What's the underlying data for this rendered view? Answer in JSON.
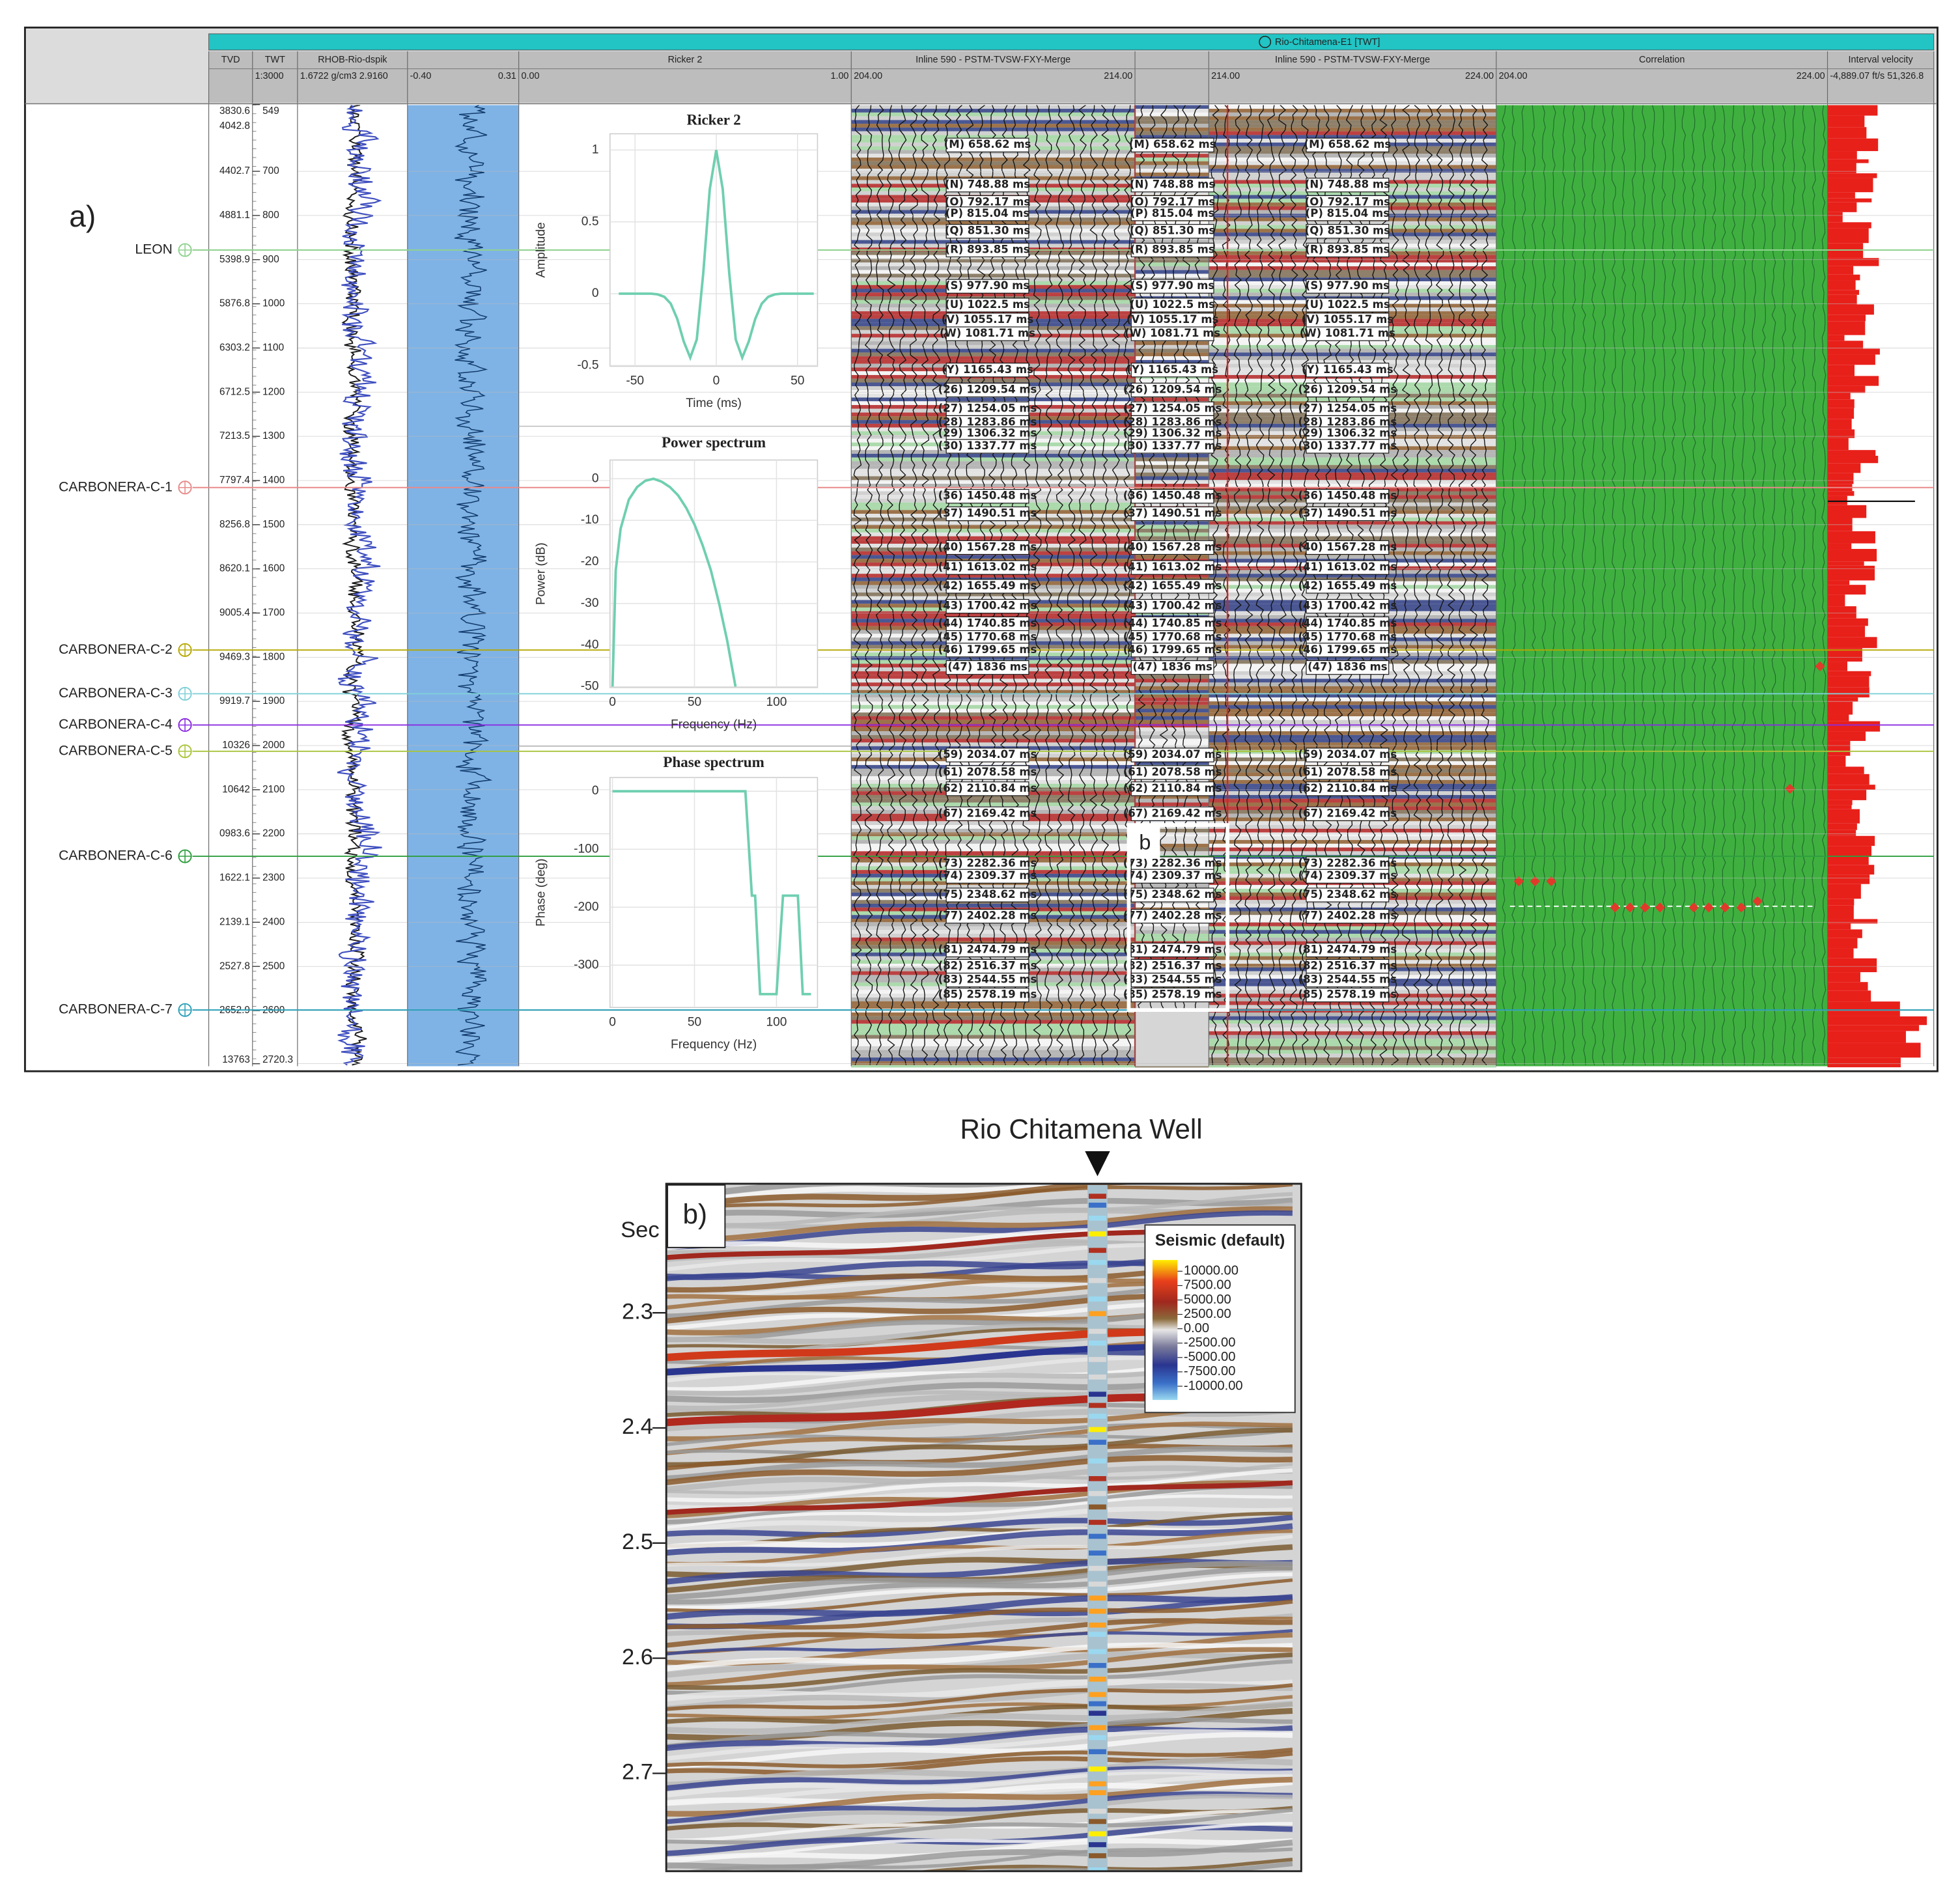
{
  "panel_a": {
    "label": "a)",
    "well_title": "Rio-Chitamena-E1 [TWT]",
    "inset_label": "b",
    "headers": [
      {
        "name": "TVD"
      },
      {
        "name": "TWT",
        "range": "1:3000"
      },
      {
        "name": "RHOB-Rio-dspik",
        "range": "1.6722 g/cm3 2.9160"
      },
      {
        "range_min": "-0.40",
        "range_max": "0.31"
      },
      {
        "name": "Ricker 2",
        "range_min": "0.00",
        "range_max": "1.00"
      },
      {
        "name": "Inline 590 - PSTM-TVSW-FXY-Merge",
        "range_min": "204.00",
        "range_max": "214.00"
      },
      {
        "name": "Inline 590 - PSTM-TVSW-FXY-Merge",
        "range_min": "214.00",
        "range_max": "224.00"
      },
      {
        "name": "Correlation",
        "range_min": "204.00",
        "range_max": "224.00"
      },
      {
        "name": "Interval velocity",
        "range": "-4,889.07 ft/s 51,326.8"
      }
    ],
    "twt_lim": [
      550,
      2726
    ],
    "twt_ticks": [
      549,
      700,
      800,
      900,
      1000,
      1100,
      1200,
      1300,
      1400,
      1500,
      1600,
      1700,
      1800,
      1900,
      2000,
      2100,
      2200,
      2300,
      2400,
      2500,
      2600,
      2720.3
    ],
    "tvd_labels": [
      "3830.6",
      "4042.8",
      "4402.7",
      "4881.1",
      "5398.9",
      "5876.8",
      "6303.2",
      "6712.5",
      "7213.5",
      "7797.4",
      "8256.8",
      "8620.1",
      "9005.4",
      "9469.3",
      "9919.7",
      "10326",
      "10642",
      "0983.6",
      "1622.1",
      "2139.1",
      "2527.8",
      "2652.9",
      "13763"
    ],
    "well_tops": [
      {
        "name": "LEON",
        "color": "#8fd18f"
      },
      {
        "name": "CARBONERA-C-1",
        "color": "#e88a8a"
      },
      {
        "name": "CARBONERA-C-2",
        "color": "#b5a800"
      },
      {
        "name": "CARBONERA-C-3",
        "color": "#7fd0d8"
      },
      {
        "name": "CARBONERA-C-4",
        "color": "#8a2be2"
      },
      {
        "name": "CARBONERA-C-5",
        "color": "#a8c43a"
      },
      {
        "name": "CARBONERA-C-6",
        "color": "#2e9e3e"
      },
      {
        "name": "CARBONERA-C-7",
        "color": "#2aa0b8"
      }
    ],
    "tie_labels": [
      "(M) 658.62 ms",
      "(N) 748.88 ms",
      "(O) 792.17 ms",
      "(P) 815.04 ms",
      "(Q) 851.30 ms",
      "(R) 893.85 ms",
      "(S) 977.90 ms",
      "(U) 1022.5 ms",
      "(V) 1055.17 ms",
      "(W) 1081.71 ms",
      "(Y) 1165.43 ms",
      "(26) 1209.54 ms",
      "(27) 1254.05 ms",
      "(28) 1283.86 ms",
      "(29) 1306.32 ms",
      "(30) 1337.77 ms",
      "(36) 1450.48 ms",
      "(37) 1490.51 ms",
      "(40) 1567.28 ms",
      "(41) 1613.02 ms",
      "(42) 1655.49 ms",
      "(43) 1700.42 ms",
      "(44) 1740.85 ms",
      "(45) 1770.68 ms",
      "(46) 1799.65 ms",
      "(47) 1836 ms",
      "(59) 2034.07 ms",
      "(61) 2078.58 ms",
      "(62) 2110.84 ms",
      "(67) 2169.42 ms",
      "(73) 2282.36 ms",
      "(74) 2309.37 ms",
      "(75) 2348.62 ms",
      "(77) 2402.28 ms",
      "(81) 2474.79 ms",
      "(82) 2516.37 ms",
      "(83) 2544.55 ms",
      "(85) 2578.19 ms"
    ]
  },
  "chart_data": [
    {
      "type": "line",
      "title": "Ricker 2",
      "x_label": "Time (ms)",
      "y_label": "Amplitude",
      "color": "#6fcfb0",
      "x": [
        -60,
        -56,
        -52,
        -48,
        -44,
        -40,
        -36,
        -32,
        -28,
        -24,
        -20,
        -16,
        -12,
        -8,
        -4,
        0,
        4,
        8,
        12,
        16,
        20,
        24,
        28,
        32,
        36,
        40,
        44,
        48,
        52,
        56,
        60
      ],
      "values": [
        0,
        0,
        0,
        0,
        0,
        0,
        -0.005,
        -0.021,
        -0.069,
        -0.175,
        -0.333,
        -0.445,
        -0.319,
        0.142,
        0.727,
        1,
        0.727,
        0.142,
        -0.319,
        -0.445,
        -0.333,
        -0.175,
        -0.069,
        -0.021,
        -0.005,
        0,
        0,
        0,
        0,
        0,
        0
      ],
      "xlim": [
        -65.4,
        62.3
      ],
      "xticks": [
        -50,
        0,
        50
      ],
      "ylim": [
        -0.505,
        1.113
      ],
      "yticks": [
        1,
        0.5,
        0,
        -0.5
      ],
      "grid": true
    },
    {
      "type": "line",
      "title": "Power spectrum",
      "x_label": "Frequency (Hz)",
      "y_label": "Power (dB)",
      "color": "#6fcfb0",
      "x": [
        0,
        2,
        5,
        10,
        15,
        20,
        25,
        30,
        35,
        40,
        45,
        50,
        55,
        60,
        65,
        70,
        75
      ],
      "values": [
        -50,
        -22,
        -12,
        -5,
        -2,
        -0.5,
        0,
        -0.7,
        -2,
        -4,
        -7,
        -11,
        -16,
        -22,
        -30,
        -39,
        -50
      ],
      "xlim": [
        -1.5,
        125
      ],
      "xticks": [
        0,
        50,
        100
      ],
      "ylim": [
        -50.2,
        4.5
      ],
      "yticks": [
        0,
        -10,
        -20,
        -30,
        -40,
        -50
      ],
      "grid": true
    },
    {
      "type": "line",
      "title": "Phase spectrum",
      "x_label": "Frequency (Hz)",
      "y_label": "Phase (deg)",
      "color": "#6fcfb0",
      "x": [
        0,
        81,
        85,
        87,
        90,
        100,
        104,
        113,
        116,
        121
      ],
      "values": [
        0,
        0,
        -180,
        -180,
        -350,
        -350,
        -180,
        -180,
        -350,
        -350
      ],
      "xlim": [
        -1.5,
        125
      ],
      "xticks": [
        0,
        50,
        100
      ],
      "ylim": [
        -373,
        23.7
      ],
      "yticks": [
        0,
        -100,
        -200,
        -300
      ],
      "grid": true
    }
  ],
  "panel_b": {
    "title": "Rio Chitamena Well",
    "label": "b)",
    "y_label": "Sec",
    "ylim": [
      2.189,
      2.785
    ],
    "yticks": [
      2.3,
      2.4,
      2.5,
      2.6,
      2.7
    ],
    "legend": {
      "title": "Seismic (default)",
      "labels": [
        "10000.00",
        "7500.00",
        "5000.00",
        "2500.00",
        "0.00",
        "-2500.00",
        "-5000.00",
        "-7500.00",
        "-10000.00"
      ]
    }
  }
}
